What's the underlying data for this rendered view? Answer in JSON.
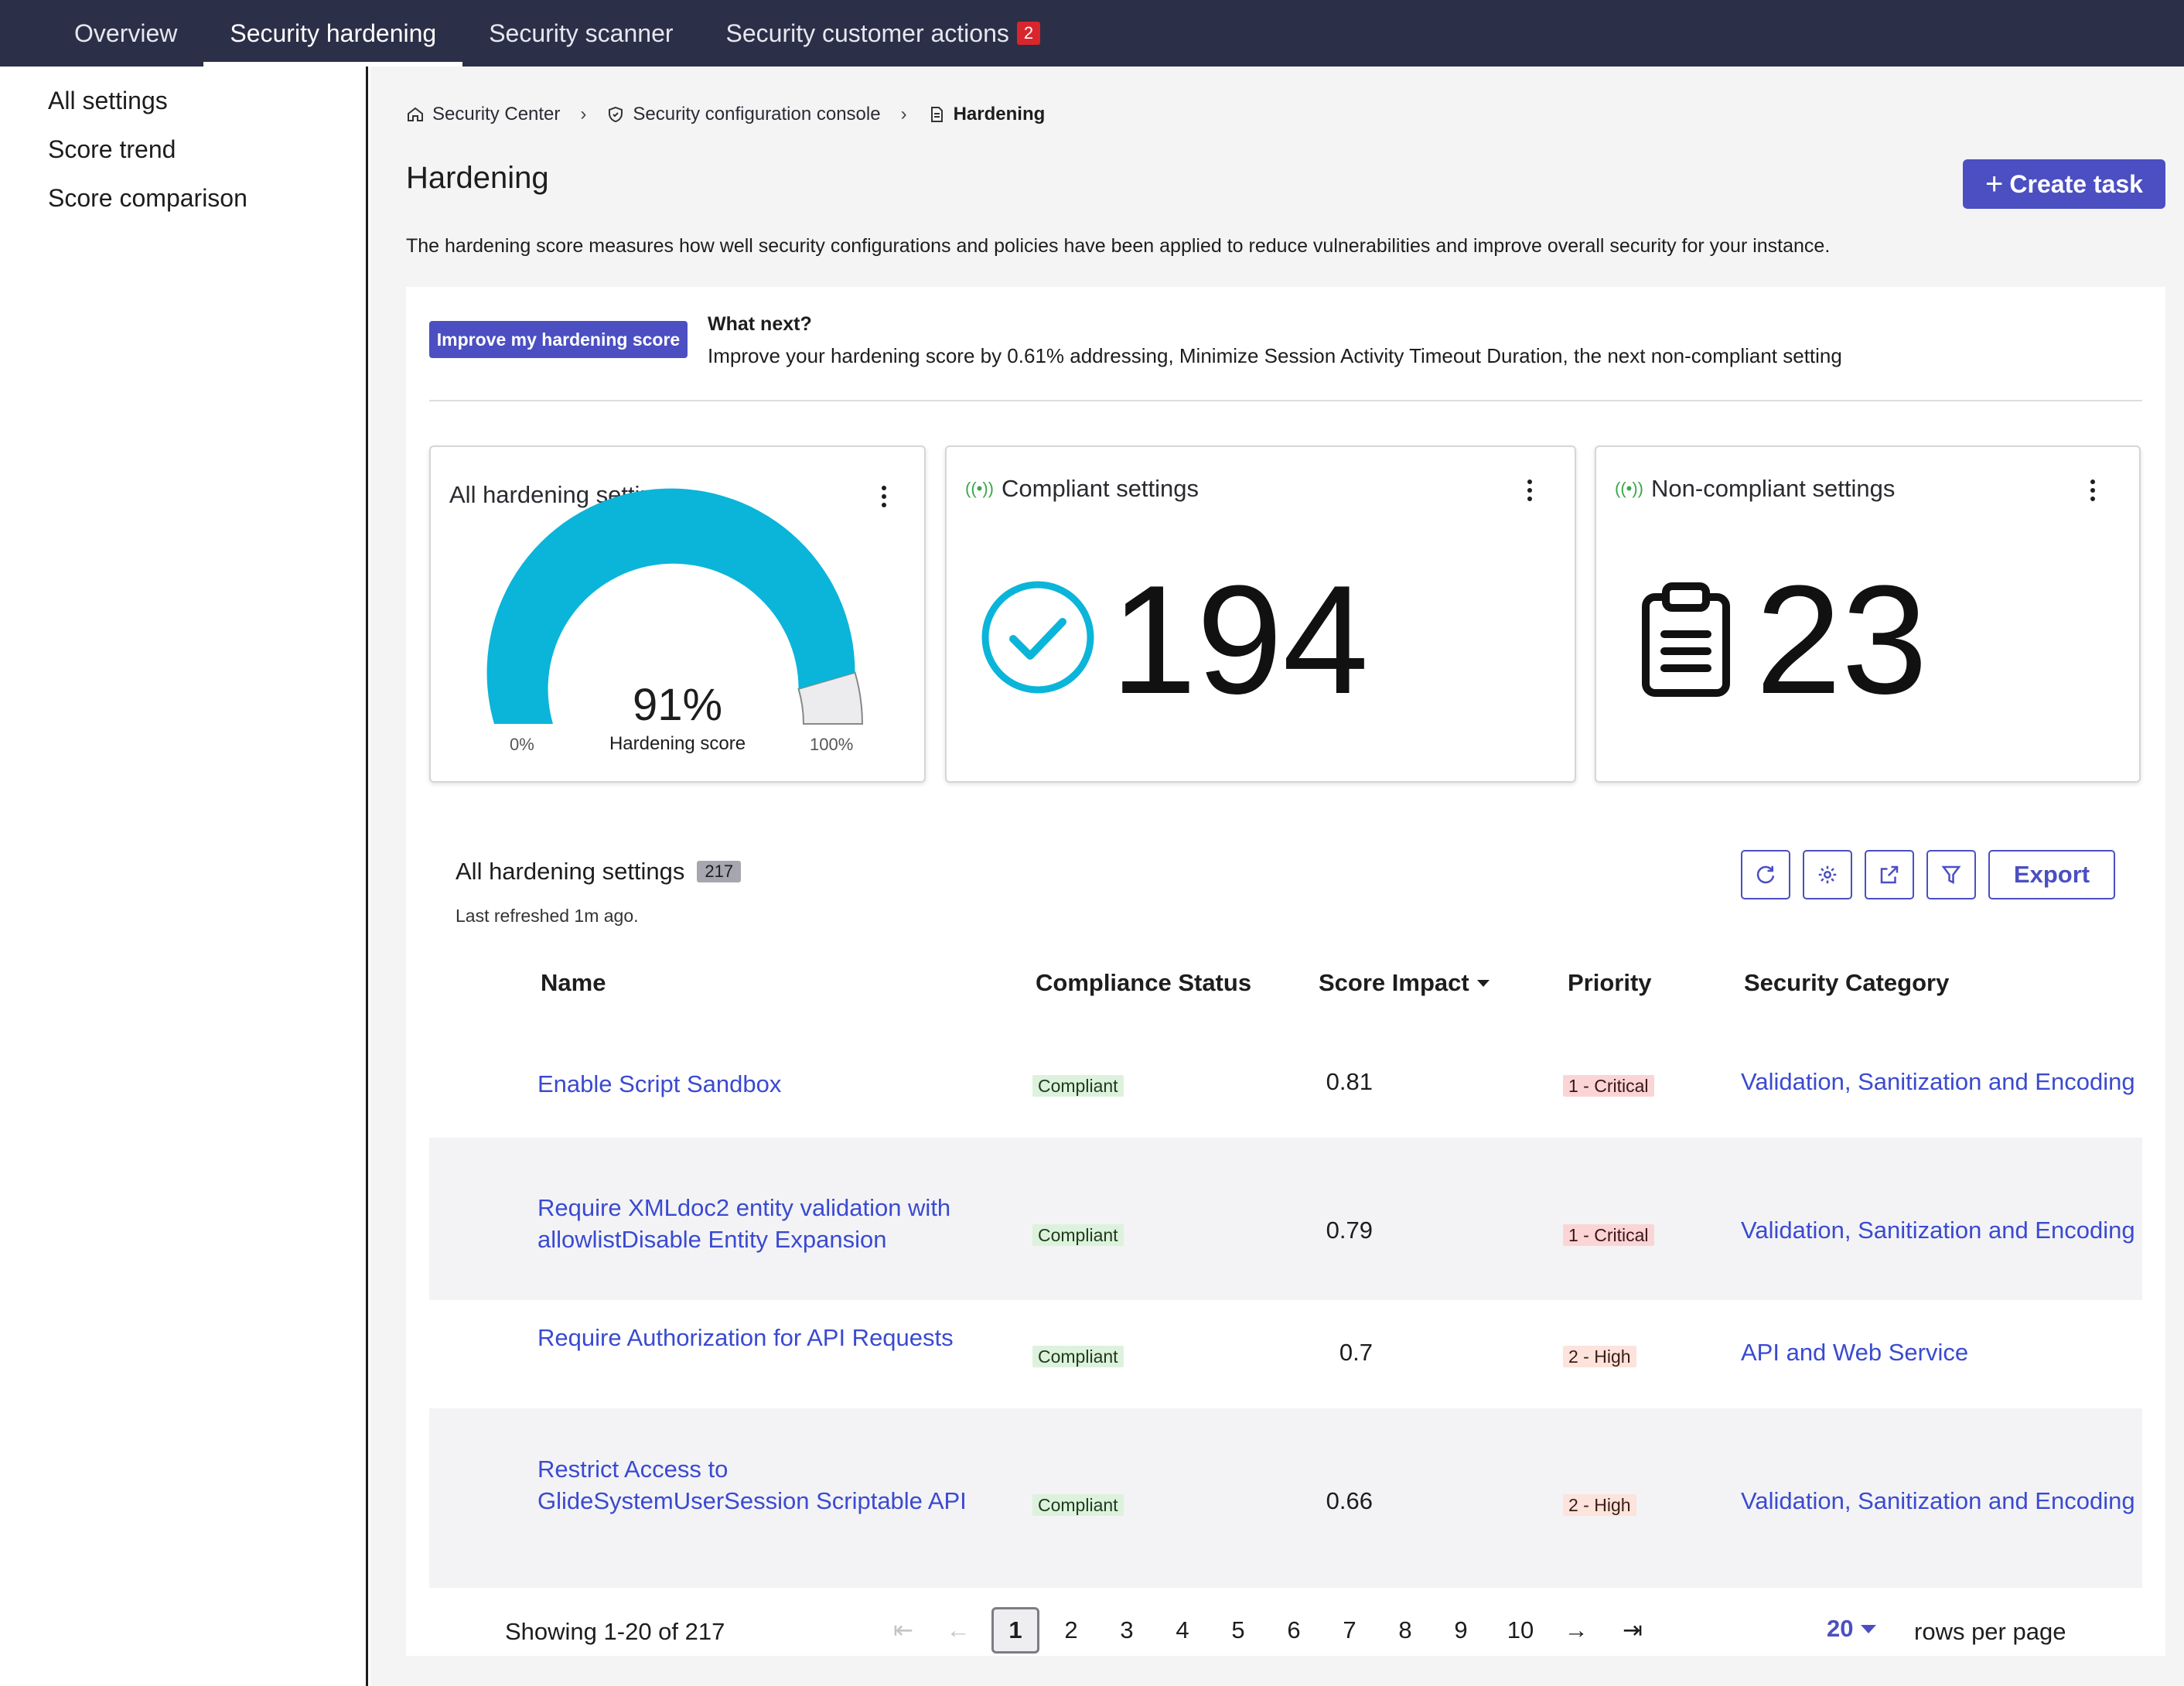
{
  "topnav": {
    "tabs": [
      {
        "label": "Overview"
      },
      {
        "label": "Security hardening"
      },
      {
        "label": "Security scanner"
      },
      {
        "label": "Security customer actions",
        "badge": "2"
      }
    ],
    "active_tab": "Security hardening"
  },
  "sidebar": {
    "items": [
      {
        "label": "All settings"
      },
      {
        "label": "Score trend"
      },
      {
        "label": "Score comparison"
      }
    ]
  },
  "breadcrumb": {
    "items": [
      {
        "label": "Security Center",
        "icon": "home-icon"
      },
      {
        "label": "Security configuration console",
        "icon": "shield-icon"
      },
      {
        "label": "Hardening",
        "icon": "document-icon"
      }
    ]
  },
  "page": {
    "title": "Hardening",
    "create_task_label": "Create task",
    "description": "The hardening score measures how well security configurations and policies have been applied to reduce vulnerabilities and improve overall security for your instance."
  },
  "whatnext": {
    "button_label": "Improve my hardening score",
    "title": "What next?",
    "text": "Improve your hardening score by 0.61% addressing, Minimize Session Activity Timeout Duration, the next non-compliant setting"
  },
  "cards": {
    "all": {
      "title": "All hardening settings",
      "score": 0.91,
      "value_label": "91%",
      "caption": "Hardening score",
      "min_label": "0%",
      "max_label": "100%",
      "gauge_color": "#0ab5d9"
    },
    "compliant": {
      "title": "Compliant settings",
      "value": "194",
      "icon": "check-circle-icon",
      "icon_color": "#0ab5d9"
    },
    "noncompliant": {
      "title": "Non-compliant settings",
      "value": "23",
      "icon": "clipboard-icon"
    }
  },
  "table": {
    "title": "All hardening settings",
    "count": "217",
    "refreshed": "Last refreshed 1m ago.",
    "export_label": "Export",
    "tools": [
      "refresh-icon",
      "settings-icon",
      "share-icon",
      "filter-icon"
    ],
    "columns": {
      "name": "Name",
      "status": "Compliance Status",
      "impact": "Score Impact",
      "priority": "Priority",
      "category": "Security Category"
    },
    "rows": [
      {
        "name": "Enable Script Sandbox",
        "status": "Compliant",
        "impact": "0.81",
        "priority": "1 - Critical",
        "priority_level": "critical",
        "category": "Validation, Sanitization and Encoding"
      },
      {
        "name": "Require XMLdoc2 entity validation with allowlistDisable Entity Expansion",
        "status": "Compliant",
        "impact": "0.79",
        "priority": "1 - Critical",
        "priority_level": "critical",
        "category": "Validation, Sanitization and Encoding"
      },
      {
        "name": "Require Authorization for API Requests",
        "status": "Compliant",
        "impact": "0.7",
        "priority": "2 - High",
        "priority_level": "high",
        "category": "API and Web Service"
      },
      {
        "name": "Restrict Access to GlideSystemUserSession Scriptable API",
        "status": "Compliant",
        "impact": "0.66",
        "priority": "2 - High",
        "priority_level": "high",
        "category": "Validation, Sanitization and Encoding"
      }
    ]
  },
  "pagination": {
    "showing": "Showing 1-20 of 217",
    "pages": [
      "1",
      "2",
      "3",
      "4",
      "5",
      "6",
      "7",
      "8",
      "9",
      "10"
    ],
    "current": "1",
    "rows_per_page": "20",
    "rows_label": "rows per page"
  }
}
